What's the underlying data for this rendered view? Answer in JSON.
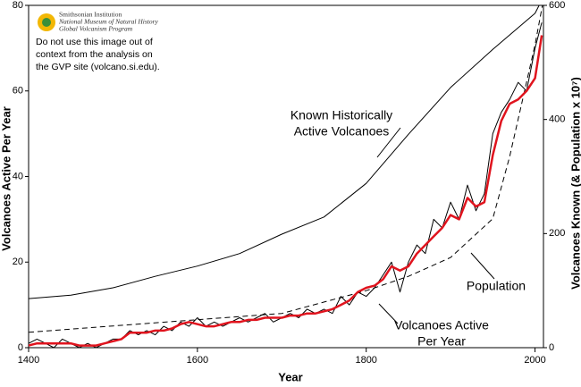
{
  "chart_data": {
    "type": "line",
    "xlabel": "Year",
    "ylabel": "Volcanoes Active Per Year",
    "y2label": "Volcanoes Known (& Population x 10⁷)",
    "xlim": [
      1400,
      2010
    ],
    "xticks": [
      1400,
      1600,
      1800,
      2000
    ],
    "ylim": [
      0,
      80
    ],
    "yticks": [
      0,
      20,
      40,
      60,
      80
    ],
    "y2lim": [
      0,
      600
    ],
    "y2ticks": [
      0,
      200,
      400,
      600
    ],
    "series": [
      {
        "name": "Volcanoes Active Per Year",
        "color": "#000000",
        "axis": "y",
        "x": [
          1400,
          1410,
          1420,
          1430,
          1440,
          1450,
          1460,
          1470,
          1480,
          1490,
          1500,
          1510,
          1520,
          1530,
          1540,
          1550,
          1560,
          1570,
          1580,
          1590,
          1600,
          1610,
          1620,
          1630,
          1640,
          1650,
          1660,
          1670,
          1680,
          1690,
          1700,
          1710,
          1720,
          1730,
          1740,
          1750,
          1760,
          1770,
          1780,
          1790,
          1800,
          1810,
          1820,
          1830,
          1840,
          1850,
          1860,
          1870,
          1880,
          1890,
          1900,
          1910,
          1920,
          1930,
          1940,
          1950,
          1960,
          1970,
          1980,
          1990,
          2000,
          2008
        ],
        "values": [
          1,
          2,
          1,
          0,
          2,
          1,
          0,
          1,
          0,
          1,
          2,
          2,
          4,
          3,
          4,
          3,
          5,
          4,
          6,
          5,
          7,
          5,
          6,
          5,
          6,
          7,
          6,
          7,
          8,
          6,
          7,
          8,
          7,
          9,
          8,
          9,
          8,
          12,
          10,
          13,
          12,
          14,
          17,
          20,
          13,
          20,
          24,
          22,
          30,
          28,
          34,
          30,
          38,
          32,
          36,
          50,
          55,
          58,
          62,
          60,
          70,
          76
        ]
      },
      {
        "color": "#e0141e",
        "axis": "y",
        "x": [
          1400,
          1410,
          1420,
          1430,
          1440,
          1450,
          1460,
          1470,
          1480,
          1490,
          1500,
          1510,
          1520,
          1530,
          1540,
          1550,
          1560,
          1570,
          1580,
          1590,
          1600,
          1610,
          1620,
          1630,
          1640,
          1650,
          1660,
          1670,
          1680,
          1690,
          1700,
          1710,
          1720,
          1730,
          1740,
          1750,
          1760,
          1770,
          1780,
          1790,
          1800,
          1810,
          1820,
          1830,
          1840,
          1850,
          1860,
          1870,
          1880,
          1890,
          1900,
          1910,
          1920,
          1930,
          1940,
          1950,
          1960,
          1970,
          1980,
          1990,
          2000,
          2008
        ],
        "values": [
          0.5,
          1,
          1,
          1,
          1,
          1,
          0.5,
          0.5,
          0.5,
          1,
          1.5,
          2,
          3.5,
          3.5,
          3.5,
          4,
          4,
          4.5,
          5.5,
          6,
          5.5,
          5,
          5,
          5.5,
          6,
          6,
          6.5,
          6.5,
          7,
          7,
          7,
          7.5,
          7.5,
          8,
          8,
          8.5,
          9,
          10,
          11,
          13,
          14,
          14.5,
          16,
          19,
          18,
          19,
          22,
          24,
          26,
          28,
          31,
          30,
          35,
          33,
          34,
          45,
          53,
          57,
          58,
          60,
          63,
          73
        ]
      },
      {
        "name": "Known Historically Active Volcanoes",
        "color": "#000000",
        "axis": "y2",
        "x": [
          1400,
          1450,
          1500,
          1550,
          1600,
          1650,
          1700,
          1750,
          1800,
          1850,
          1900,
          1950,
          2000,
          2010
        ],
        "values": [
          86,
          92,
          105,
          125,
          143,
          165,
          199,
          229,
          288,
          374,
          456,
          523,
          586,
          615
        ]
      },
      {
        "name": "Population",
        "color": "#000000",
        "axis": "y2",
        "line_style": "dashed",
        "x": [
          1400,
          1500,
          1600,
          1700,
          1800,
          1850,
          1900,
          1950,
          1970,
          2000,
          2010
        ],
        "values": [
          27,
          38,
          49,
          60,
          100,
          125,
          158,
          226,
          335,
          531,
          610
        ]
      }
    ],
    "annotations": [
      {
        "series": 2,
        "lines": [
          "Known Historically",
          "Active Volcanoes"
        ]
      },
      {
        "series": 3,
        "lines": [
          "Population"
        ]
      },
      {
        "series": 0,
        "lines": [
          "Volcanoes Active",
          "Per Year"
        ]
      }
    ]
  },
  "logo": {
    "lines": [
      "Smithsonian Institution",
      "National Museum of Natural History",
      "Global Volcanism Program"
    ]
  },
  "notice": {
    "lines": [
      "Do not use this image out of",
      "context from the analysis on",
      "the GVP site (volcano.si.edu)."
    ]
  }
}
